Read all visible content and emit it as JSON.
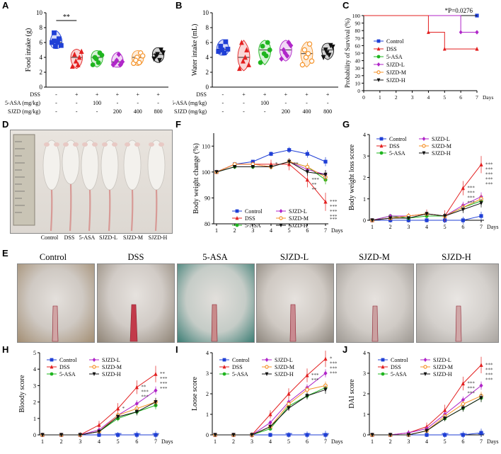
{
  "panels": {
    "A": "A",
    "B": "B",
    "C": "C",
    "D": "D",
    "E": "E",
    "F": "F",
    "G": "G",
    "H": "H",
    "I": "I",
    "J": "J"
  },
  "colors": {
    "control": "#1f3fd6",
    "dss": "#e32020",
    "asa": "#1fb51f",
    "sjzdl": "#b026c9",
    "sjzdm": "#f5932a",
    "sjzdh": "#111111",
    "vlines": "#777777"
  },
  "groups": [
    "Control",
    "DSS",
    "5-ASA",
    "SJZD-L",
    "SJZD-M",
    "SJZD-H"
  ],
  "treatment_table": {
    "rows": [
      {
        "label": "DSS",
        "values": [
          "-",
          "+",
          "+",
          "+",
          "+",
          "+"
        ]
      },
      {
        "label": "5-ASA (mg/kg)",
        "values": [
          "-",
          "-",
          "100",
          "-",
          "-",
          "-"
        ]
      },
      {
        "label": "SJZD (mg/kg)",
        "values": [
          "-",
          "-",
          "-",
          "200",
          "400",
          "800"
        ]
      }
    ]
  },
  "chart_data": [
    {
      "panel": "A",
      "type": "violin",
      "ylabel": "Food intake (g)",
      "ylim": [
        0,
        10
      ],
      "yticks": [
        "0",
        "2",
        "4",
        "6",
        "8",
        "10"
      ],
      "groups": [
        "Control",
        "DSS",
        "5-ASA",
        "SJZD-L",
        "SJZD-M",
        "SJZD-H"
      ],
      "points": [
        [
          6.0,
          5.5,
          6.5,
          7.3,
          6.0,
          5.6,
          6.2
        ],
        [
          2.8,
          3.5,
          4.0,
          4.4,
          3.0,
          4.8
        ],
        [
          3.0,
          3.8,
          4.6,
          4.0,
          3.3,
          4.3
        ],
        [
          3.0,
          3.6,
          3.0,
          3.3,
          4.4,
          3.4
        ],
        [
          3.2,
          4.0,
          4.6,
          3.6,
          3.3,
          4.2
        ],
        [
          3.8,
          4.4,
          5.0,
          4.2,
          3.6,
          4.6
        ]
      ],
      "significance": [
        {
          "from": "Control",
          "to": "DSS",
          "label": "**"
        }
      ]
    },
    {
      "panel": "B",
      "type": "violin",
      "ylabel": "Water intake (mL)",
      "ylim": [
        0,
        10
      ],
      "yticks": [
        "0",
        "2",
        "4",
        "6",
        "8",
        "10"
      ],
      "groups": [
        "Control",
        "DSS",
        "5-ASA",
        "SJZD-L",
        "SJZD-M",
        "SJZD-H"
      ],
      "points": [
        [
          4.8,
          5.0,
          6.1,
          5.5,
          4.6,
          5.1
        ],
        [
          2.5,
          3.5,
          5.0,
          6.0,
          4.0,
          3.0
        ],
        [
          3.3,
          4.5,
          6.0,
          5.5,
          4.2,
          5.0
        ],
        [
          3.8,
          4.6,
          6.0,
          5.0,
          4.2,
          5.6
        ],
        [
          3.0,
          4.0,
          5.8,
          5.0,
          4.5,
          3.5
        ],
        [
          4.0,
          4.6,
          5.6,
          5.0,
          4.3,
          5.4
        ]
      ]
    },
    {
      "panel": "C",
      "type": "line",
      "ylabel": "Probability of Survival (%)",
      "xlabel": "Days",
      "xlim": [
        0,
        7
      ],
      "ylim": [
        0,
        100
      ],
      "xticks": [
        "0",
        "1",
        "2",
        "3",
        "4",
        "5",
        "6",
        "7"
      ],
      "yticks": [
        "0",
        "10",
        "20",
        "30",
        "40",
        "50",
        "60",
        "70",
        "80",
        "90",
        "100"
      ],
      "annotation": "*P=0.0276",
      "series": [
        {
          "name": "Control",
          "x": [
            0,
            7
          ],
          "y": [
            100,
            100
          ]
        },
        {
          "name": "DSS",
          "x": [
            0,
            4,
            4,
            5,
            5,
            7
          ],
          "y": [
            100,
            100,
            77.8,
            77.8,
            55.6,
            55.6
          ]
        },
        {
          "name": "5-ASA",
          "x": [
            0,
            7
          ],
          "y": [
            100,
            100
          ]
        },
        {
          "name": "SJZD-L",
          "x": [
            0,
            6,
            6,
            7
          ],
          "y": [
            100,
            100,
            77.8,
            77.8
          ]
        },
        {
          "name": "SJZD-M",
          "x": [
            0,
            7
          ],
          "y": [
            100,
            100
          ]
        },
        {
          "name": "SJZD-H",
          "x": [
            0,
            7
          ],
          "y": [
            100,
            100
          ]
        }
      ]
    },
    {
      "panel": "F",
      "type": "line",
      "ylabel": "Body weight change (%)",
      "xlabel": "Days",
      "ylim": [
        80,
        115
      ],
      "x": [
        1,
        2,
        3,
        4,
        5,
        6,
        7
      ],
      "xticks": [
        "1",
        "2",
        "3",
        "4",
        "5",
        "6",
        "7"
      ],
      "yticks": [
        "80",
        "90",
        "100",
        "110"
      ],
      "series": [
        {
          "name": "Control",
          "values": [
            100,
            103,
            104,
            107,
            108.5,
            107,
            104
          ]
        },
        {
          "name": "DSS",
          "values": [
            100,
            103,
            103,
            103,
            103,
            97,
            88.5
          ]
        },
        {
          "name": "5-ASA",
          "values": [
            100,
            102,
            102,
            102,
            104,
            102,
            97
          ]
        },
        {
          "name": "SJZD-L",
          "values": [
            100,
            103,
            103,
            102,
            104,
            101,
            99
          ]
        },
        {
          "name": "SJZD-M",
          "values": [
            100,
            103,
            103,
            102,
            104,
            102,
            98
          ]
        },
        {
          "name": "SJZD-H",
          "values": [
            100,
            102,
            102,
            102,
            104,
            100,
            99
          ]
        }
      ],
      "stars": {
        "4": [
          "*"
        ],
        "5": [
          "**"
        ],
        "6": [
          "***",
          "**",
          "**"
        ],
        "7": [
          "***",
          "***",
          "***",
          "***",
          "***"
        ]
      }
    },
    {
      "panel": "G",
      "type": "line",
      "ylabel": "Body weight loss score",
      "xlabel": "Days",
      "ylim": [
        0,
        4
      ],
      "x": [
        1,
        2,
        3,
        4,
        5,
        6,
        7
      ],
      "xticks": [
        "1",
        "2",
        "3",
        "4",
        "5",
        "6",
        "7"
      ],
      "yticks": [
        "0",
        "1",
        "2",
        "3",
        "4"
      ],
      "series": [
        {
          "name": "Control",
          "values": [
            0,
            0,
            0,
            0,
            0,
            0,
            0.2
          ]
        },
        {
          "name": "DSS",
          "values": [
            0,
            0.1,
            0.2,
            0.3,
            0.2,
            1.5,
            2.6
          ]
        },
        {
          "name": "5-ASA",
          "values": [
            0,
            0.2,
            0.1,
            0.2,
            0.2,
            0.6,
            0.9
          ]
        },
        {
          "name": "SJZD-L",
          "values": [
            0,
            0.2,
            0.2,
            0.3,
            0.2,
            0.7,
            1.1
          ]
        },
        {
          "name": "SJZD-M",
          "values": [
            0,
            0.1,
            0.2,
            0.3,
            0.2,
            0.6,
            1.0
          ]
        },
        {
          "name": "SJZD-H",
          "values": [
            0,
            0.1,
            0.1,
            0.3,
            0.2,
            0.5,
            0.8
          ]
        }
      ],
      "stars": {
        "6": [
          "***",
          "***",
          "***",
          "***"
        ],
        "7": [
          "***",
          "***",
          "***",
          "***",
          "***"
        ]
      }
    },
    {
      "panel": "H",
      "type": "line",
      "ylabel": "Bloody score",
      "xlabel": "Days",
      "ylim": [
        0,
        5
      ],
      "x": [
        1,
        2,
        3,
        4,
        5,
        6,
        7
      ],
      "xticks": [
        "1",
        "2",
        "3",
        "4",
        "5",
        "6",
        "7"
      ],
      "yticks": [
        "0",
        "1",
        "2",
        "3",
        "4",
        "5"
      ],
      "series": [
        {
          "name": "Control",
          "values": [
            0,
            0,
            0,
            0,
            0,
            0,
            0
          ]
        },
        {
          "name": "DSS",
          "values": [
            0,
            0,
            0,
            0.6,
            1.6,
            2.9,
            3.7
          ]
        },
        {
          "name": "5-ASA",
          "values": [
            0,
            0,
            0,
            0.2,
            1.0,
            1.4,
            1.8
          ]
        },
        {
          "name": "SJZD-L",
          "values": [
            0,
            0,
            0,
            0.3,
            1.2,
            1.9,
            2.7
          ]
        },
        {
          "name": "SJZD-M",
          "values": [
            0,
            0,
            0,
            0.2,
            1.2,
            1.6,
            2.0
          ]
        },
        {
          "name": "SJZD-H",
          "values": [
            0,
            0,
            0,
            0.2,
            1.1,
            1.4,
            2.0
          ]
        }
      ],
      "stars": {
        "5": [
          "*"
        ],
        "6": [
          "**",
          "***",
          "***"
        ],
        "7": [
          "**",
          "***",
          "***",
          "***"
        ]
      },
      "bottom_stars": [
        "***",
        "***",
        "***"
      ]
    },
    {
      "panel": "I",
      "type": "line",
      "ylabel": "Loose score",
      "xlabel": "Days",
      "ylim": [
        0,
        4
      ],
      "x": [
        1,
        2,
        3,
        4,
        5,
        6,
        7
      ],
      "xticks": [
        "1",
        "2",
        "3",
        "4",
        "5",
        "6",
        "7"
      ],
      "yticks": [
        "0",
        "1",
        "2",
        "3",
        "4"
      ],
      "series": [
        {
          "name": "Control",
          "values": [
            0,
            0,
            0,
            0,
            0,
            0,
            0
          ]
        },
        {
          "name": "DSS",
          "values": [
            0,
            0,
            0,
            1.0,
            2.0,
            2.9,
            3.7
          ]
        },
        {
          "name": "5-ASA",
          "values": [
            0,
            0,
            0,
            0.3,
            1.4,
            1.9,
            2.3
          ]
        },
        {
          "name": "SJZD-L",
          "values": [
            0,
            0,
            0,
            0.6,
            1.6,
            2.3,
            3.0
          ]
        },
        {
          "name": "SJZD-M",
          "values": [
            0,
            0,
            0,
            0.4,
            1.5,
            2.2,
            2.4
          ]
        },
        {
          "name": "SJZD-H",
          "values": [
            0,
            0,
            0,
            0.4,
            1.3,
            1.9,
            2.2
          ]
        }
      ],
      "stars": {
        "6": [
          "***",
          "***"
        ],
        "7": [
          "*",
          "***",
          "***",
          "***"
        ]
      },
      "bottom_stars": [
        "***",
        "***",
        "***"
      ]
    },
    {
      "panel": "J",
      "type": "line",
      "ylabel": "DAI score",
      "xlabel": "Days",
      "ylim": [
        0,
        4
      ],
      "x": [
        1,
        2,
        3,
        4,
        5,
        6,
        7
      ],
      "xticks": [
        "1",
        "2",
        "3",
        "4",
        "5",
        "6",
        "7"
      ],
      "yticks": [
        "0",
        "1",
        "2",
        "3",
        "4"
      ],
      "series": [
        {
          "name": "Control",
          "values": [
            0,
            0,
            0,
            0,
            0,
            0,
            0.1
          ]
        },
        {
          "name": "DSS",
          "values": [
            0,
            0,
            0.1,
            0.4,
            1.2,
            2.5,
            3.4
          ]
        },
        {
          "name": "5-ASA",
          "values": [
            0,
            0,
            0,
            0.2,
            0.8,
            1.3,
            1.8
          ]
        },
        {
          "name": "SJZD-L",
          "values": [
            0,
            0,
            0.1,
            0.3,
            1.0,
            1.7,
            2.4
          ]
        },
        {
          "name": "SJZD-M",
          "values": [
            0,
            0,
            0,
            0.2,
            0.9,
            1.5,
            1.9
          ]
        },
        {
          "name": "SJZD-H",
          "values": [
            0,
            0,
            0,
            0.2,
            0.8,
            1.3,
            1.8
          ]
        }
      ],
      "stars": {
        "6": [
          "***",
          "***",
          "***"
        ],
        "7": [
          "***",
          "***",
          "***",
          "***"
        ]
      },
      "bottom_stars": [
        "***",
        "***",
        "***"
      ]
    }
  ]
}
